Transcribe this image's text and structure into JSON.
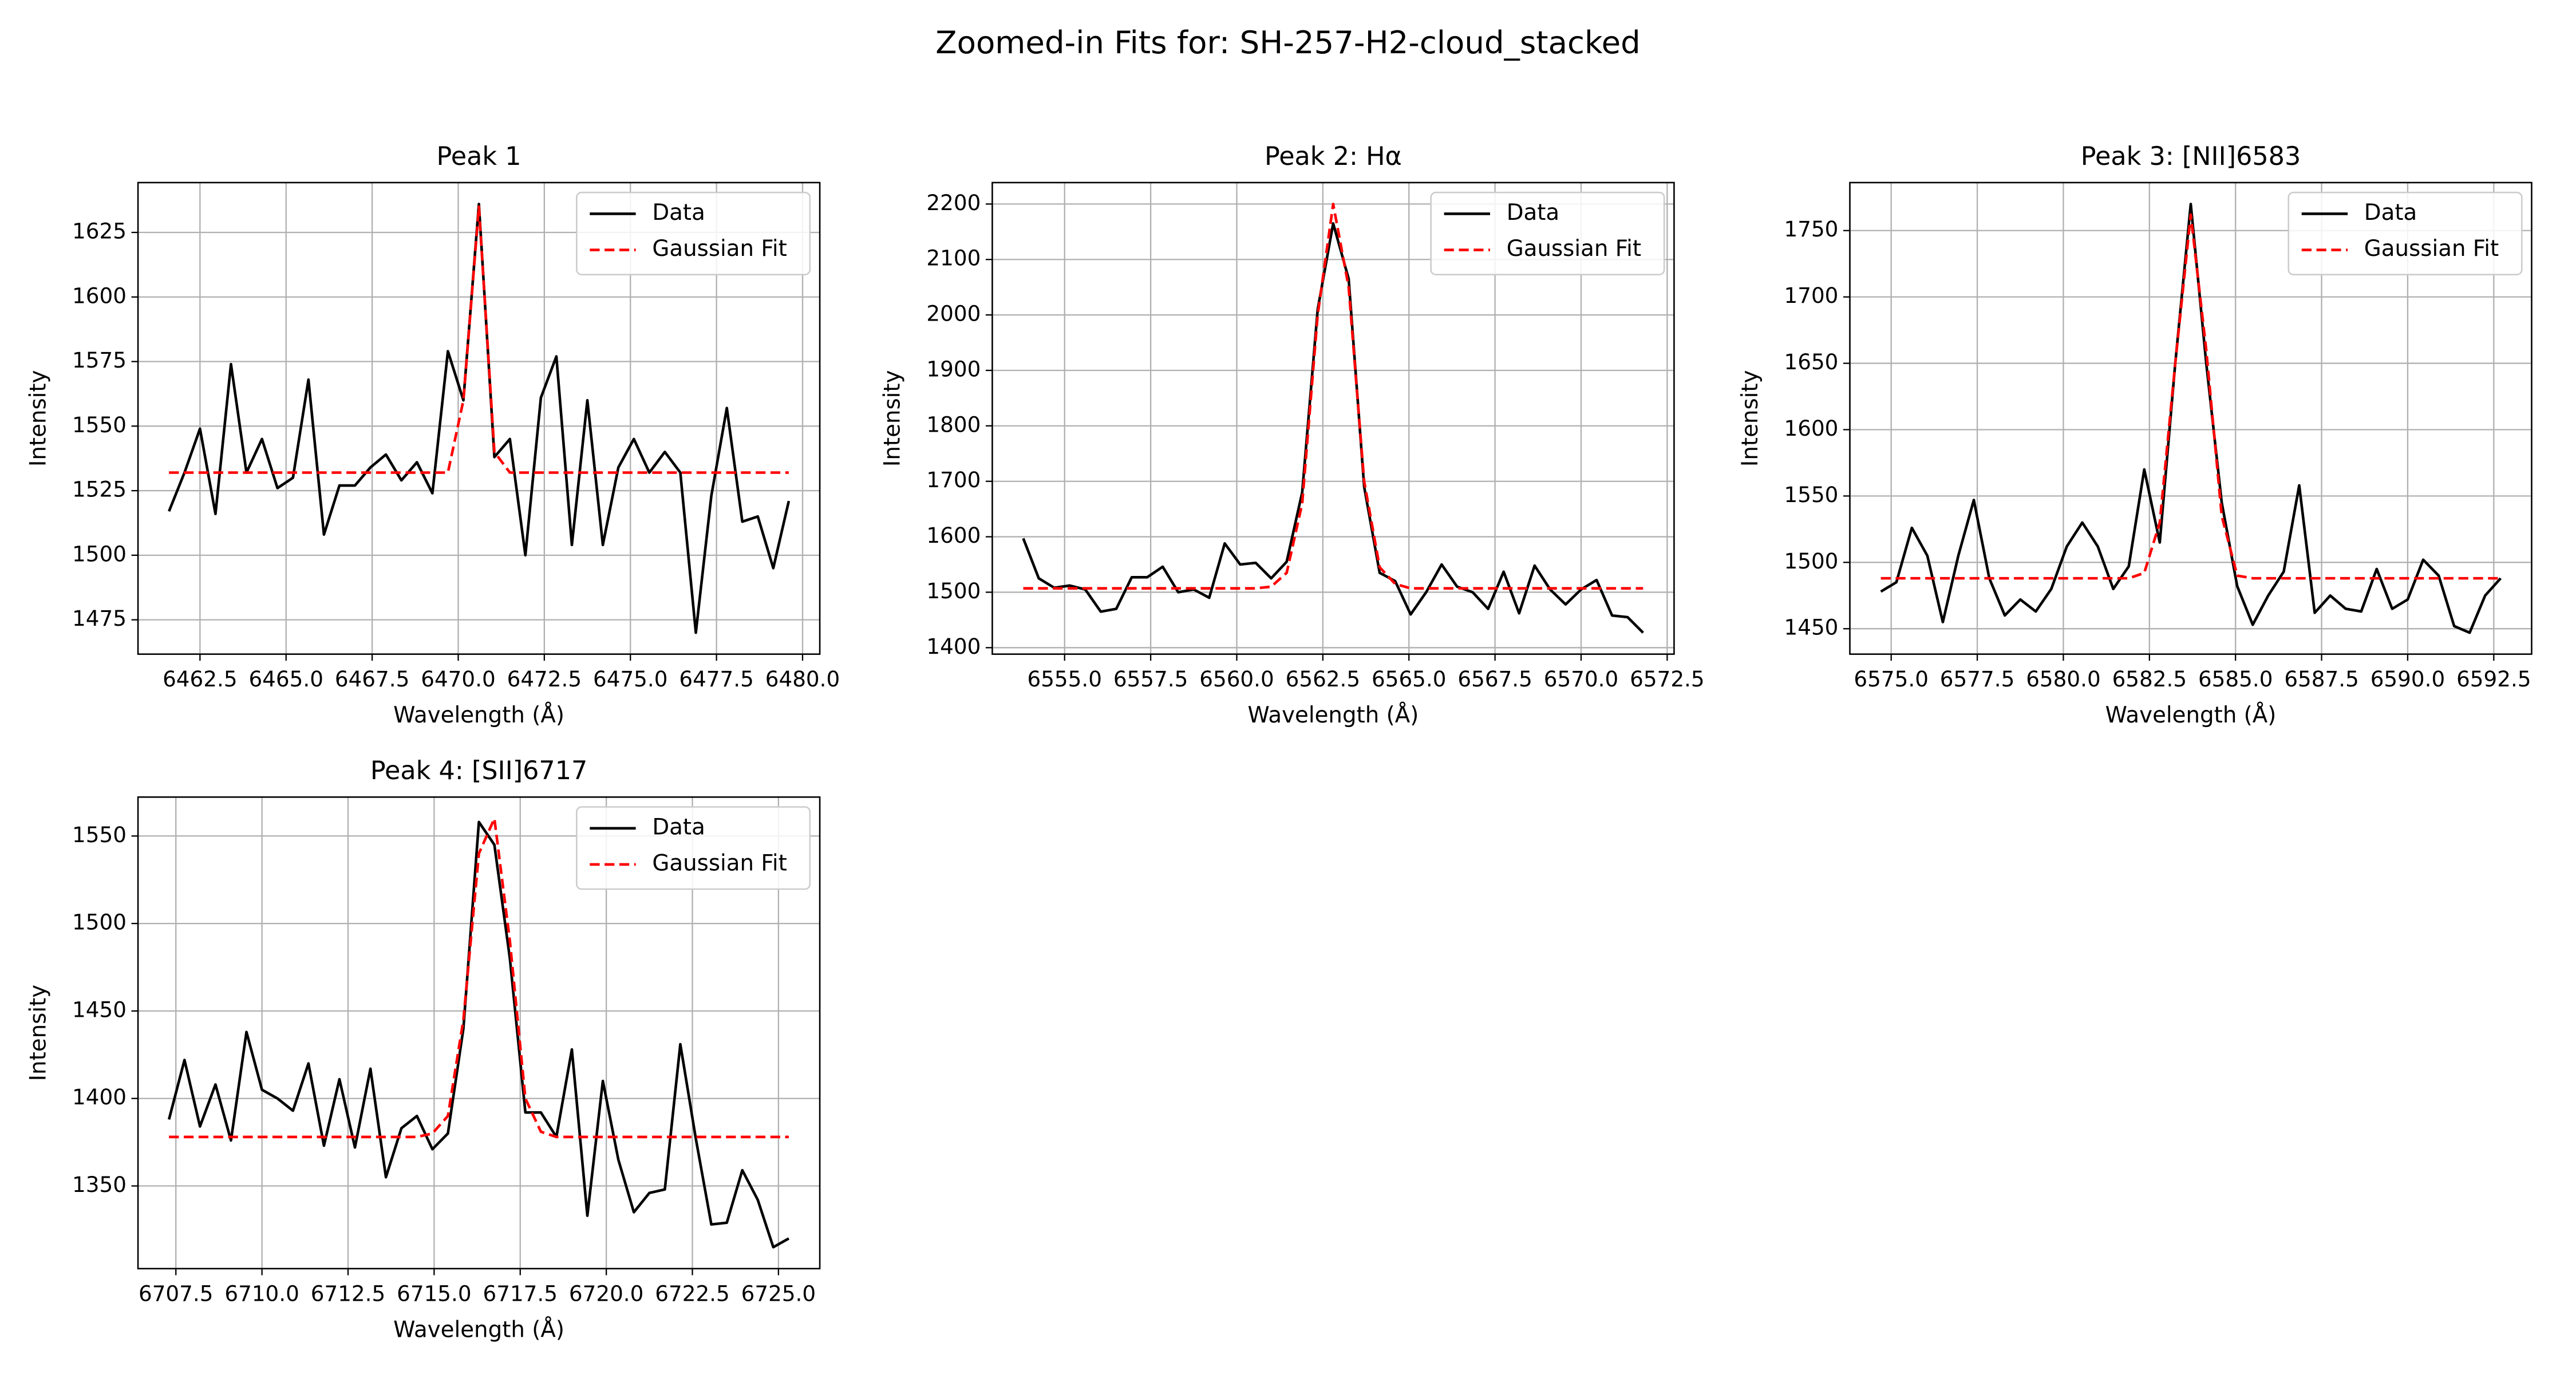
{
  "title": "Zoomed-in Fits for: SH-257-H2-cloud_stacked",
  "chart_data": [
    {
      "type": "line",
      "title": "Peak 1",
      "xlabel": "Wavelength (Å)",
      "ylabel": "Intensity",
      "grid": true,
      "legend": "upper right",
      "x": [
        6461.6,
        6462.05,
        6462.5,
        6462.95,
        6463.4,
        6463.85,
        6464.3,
        6464.75,
        6465.2,
        6465.65,
        6466.1,
        6466.55,
        6467.0,
        6467.45,
        6467.9,
        6468.35,
        6468.8,
        6469.25,
        6469.7,
        6470.15,
        6470.6,
        6471.05,
        6471.5,
        6471.95,
        6472.4,
        6472.85,
        6473.3,
        6473.75,
        6474.2,
        6474.65,
        6475.1,
        6475.55,
        6476.0,
        6476.45,
        6476.9,
        6477.35,
        6477.8,
        6478.25,
        6478.7,
        6479.15,
        6479.6
      ],
      "series": [
        {
          "name": "Data",
          "color": "#000000",
          "linestyle": "solid",
          "values": [
            1517,
            1532,
            1549,
            1516,
            1574,
            1532,
            1545,
            1526,
            1530,
            1568,
            1508,
            1527,
            1527,
            1534,
            1539,
            1529,
            1536,
            1524,
            1579,
            1560,
            1636,
            1538,
            1545,
            1500,
            1561,
            1577,
            1504,
            1560,
            1504,
            1534,
            1545,
            1532,
            1540,
            1532,
            1470,
            1523,
            1557,
            1513,
            1515,
            1495,
            1521
          ]
        },
        {
          "name": "Gaussian Fit",
          "color": "#ff0000",
          "linestyle": "dashed",
          "values": [
            1532,
            1532,
            1532,
            1532,
            1532,
            1532,
            1532,
            1532,
            1532,
            1532,
            1532,
            1532,
            1532,
            1532,
            1532,
            1532,
            1532,
            1532,
            1532,
            1560,
            1635,
            1540,
            1532,
            1532,
            1532,
            1532,
            1532,
            1532,
            1532,
            1532,
            1532,
            1532,
            1532,
            1532,
            1532,
            1532,
            1532,
            1532,
            1532,
            1532,
            1532
          ]
        }
      ],
      "xlim": [
        6460.7,
        6480.5
      ],
      "ylim": [
        1461.7,
        1644.3
      ],
      "xticks": [
        6462.5,
        {
          "value": 6465,
          "label": "6465.0"
        },
        6467.5,
        {
          "value": 6470,
          "label": "6470.0"
        },
        6472.5,
        {
          "value": 6475,
          "label": "6475.0"
        },
        6477.5,
        {
          "value": 6480,
          "label": "6480.0"
        }
      ],
      "yticks": [
        1475,
        1500,
        1525,
        1550,
        1575,
        1600,
        1625
      ]
    },
    {
      "type": "line",
      "title": "Peak 2: Hα",
      "xlabel": "Wavelength (Å)",
      "ylabel": "Intensity",
      "grid": true,
      "legend": "upper right",
      "x": [
        6553.8,
        6554.25,
        6554.7,
        6555.15,
        6555.6,
        6556.05,
        6556.5,
        6556.95,
        6557.4,
        6557.85,
        6558.3,
        6558.75,
        6559.2,
        6559.65,
        6560.1,
        6560.55,
        6561.0,
        6561.45,
        6561.9,
        6562.35,
        6562.8,
        6563.25,
        6563.7,
        6564.15,
        6564.6,
        6565.05,
        6565.5,
        6565.95,
        6566.4,
        6566.85,
        6567.3,
        6567.75,
        6568.2,
        6568.65,
        6569.1,
        6569.55,
        6570.0,
        6570.45,
        6570.9,
        6571.35,
        6571.8
      ],
      "series": [
        {
          "name": "Data",
          "color": "#000000",
          "linestyle": "solid",
          "values": [
            1597,
            1525,
            1508,
            1512,
            1505,
            1465,
            1470,
            1527,
            1527,
            1546,
            1500,
            1505,
            1490,
            1588,
            1550,
            1553,
            1525,
            1555,
            1680,
            2010,
            2165,
            2065,
            1690,
            1535,
            1520,
            1460,
            1500,
            1550,
            1510,
            1500,
            1470,
            1537,
            1462,
            1548,
            1505,
            1478,
            1505,
            1522,
            1458,
            1455,
            1427
          ]
        },
        {
          "name": "Gaussian Fit",
          "color": "#ff0000",
          "linestyle": "dashed",
          "values": [
            1507,
            1507,
            1507,
            1507,
            1507,
            1507,
            1507,
            1507,
            1507,
            1507,
            1507,
            1507,
            1507,
            1507,
            1507,
            1507,
            1510,
            1535,
            1660,
            2000,
            2200,
            2050,
            1700,
            1545,
            1515,
            1507,
            1507,
            1507,
            1507,
            1507,
            1507,
            1507,
            1507,
            1507,
            1507,
            1507,
            1507,
            1507,
            1507,
            1507,
            1507
          ]
        }
      ],
      "xlim": [
        6552.9,
        6572.7
      ],
      "ylim": [
        1388.35,
        2238.65
      ],
      "xticks": [
        {
          "value": 6555,
          "label": "6555.0"
        },
        6557.5,
        {
          "value": 6560,
          "label": "6560.0"
        },
        6562.5,
        {
          "value": 6565,
          "label": "6565.0"
        },
        6567.5,
        {
          "value": 6570,
          "label": "6570.0"
        },
        6572.5
      ],
      "yticks": [
        1400,
        1500,
        1600,
        1700,
        1800,
        1900,
        2000,
        2100,
        2200
      ]
    },
    {
      "type": "line",
      "title": "Peak 3: [NII]6583",
      "xlabel": "Wavelength (Å)",
      "ylabel": "Intensity",
      "grid": true,
      "legend": "upper right",
      "x": [
        6574.7,
        6575.15,
        6575.6,
        6576.05,
        6576.5,
        6576.95,
        6577.4,
        6577.85,
        6578.3,
        6578.75,
        6579.2,
        6579.65,
        6580.1,
        6580.55,
        6581.0,
        6581.45,
        6581.9,
        6582.35,
        6582.8,
        6583.25,
        6583.7,
        6584.15,
        6584.6,
        6585.05,
        6585.5,
        6585.95,
        6586.4,
        6586.85,
        6587.3,
        6587.75,
        6588.2,
        6588.65,
        6589.1,
        6589.55,
        6590.0,
        6590.45,
        6590.9,
        6591.35,
        6591.8,
        6592.25,
        6592.7
      ],
      "series": [
        {
          "name": "Data",
          "color": "#000000",
          "linestyle": "solid",
          "values": [
            1478,
            1485,
            1526,
            1505,
            1455,
            1505,
            1547,
            1488,
            1460,
            1472,
            1463,
            1480,
            1512,
            1530,
            1512,
            1480,
            1497,
            1570,
            1515,
            1650,
            1770,
            1650,
            1545,
            1482,
            1453,
            1475,
            1493,
            1558,
            1462,
            1475,
            1465,
            1463,
            1495,
            1465,
            1472,
            1502,
            1490,
            1452,
            1447,
            1475,
            1488
          ]
        },
        {
          "name": "Gaussian Fit",
          "color": "#ff0000",
          "linestyle": "dashed",
          "values": [
            1488,
            1488,
            1488,
            1488,
            1488,
            1488,
            1488,
            1488,
            1488,
            1488,
            1488,
            1488,
            1488,
            1488,
            1488,
            1488,
            1488,
            1492,
            1530,
            1650,
            1762,
            1660,
            1535,
            1490,
            1488,
            1488,
            1488,
            1488,
            1488,
            1488,
            1488,
            1488,
            1488,
            1488,
            1488,
            1488,
            1488,
            1488,
            1488,
            1488,
            1488
          ]
        }
      ],
      "xlim": [
        6573.8,
        6593.6
      ],
      "ylim": [
        1430.85,
        1786.15
      ],
      "xticks": [
        {
          "value": 6575,
          "label": "6575.0"
        },
        6577.5,
        {
          "value": 6580,
          "label": "6580.0"
        },
        6582.5,
        {
          "value": 6585,
          "label": "6585.0"
        },
        6587.5,
        {
          "value": 6590,
          "label": "6590.0"
        },
        6592.5
      ],
      "yticks": [
        1450,
        1500,
        1550,
        1600,
        1650,
        1700,
        1750
      ]
    },
    {
      "type": "line",
      "title": "Peak 4: [SII]6717",
      "xlabel": "Wavelength (Å)",
      "ylabel": "Intensity",
      "grid": true,
      "legend": "upper right",
      "x": [
        6707.3,
        6707.75,
        6708.2,
        6708.65,
        6709.1,
        6709.55,
        6710.0,
        6710.45,
        6710.9,
        6711.35,
        6711.8,
        6712.25,
        6712.7,
        6713.15,
        6713.6,
        6714.05,
        6714.5,
        6714.95,
        6715.4,
        6715.85,
        6716.3,
        6716.75,
        6717.2,
        6717.65,
        6718.1,
        6718.55,
        6719.0,
        6719.45,
        6719.9,
        6720.35,
        6720.8,
        6721.25,
        6721.7,
        6722.15,
        6722.6,
        6723.05,
        6723.5,
        6723.95,
        6724.4,
        6724.85,
        6725.3
      ],
      "series": [
        {
          "name": "Data",
          "color": "#000000",
          "linestyle": "solid",
          "values": [
            1388,
            1422,
            1384,
            1408,
            1376,
            1438,
            1405,
            1400,
            1393,
            1420,
            1373,
            1411,
            1372,
            1417,
            1355,
            1383,
            1390,
            1371,
            1380,
            1440,
            1558,
            1545,
            1480,
            1392,
            1392,
            1378,
            1428,
            1333,
            1410,
            1365,
            1335,
            1346,
            1348,
            1431,
            1377,
            1328,
            1329,
            1359,
            1342,
            1315,
            1320
          ]
        },
        {
          "name": "Gaussian Fit",
          "color": "#ff0000",
          "linestyle": "dashed",
          "values": [
            1378,
            1378,
            1378,
            1378,
            1378,
            1378,
            1378,
            1378,
            1378,
            1378,
            1378,
            1378,
            1378,
            1378,
            1378,
            1378,
            1378,
            1380,
            1390,
            1445,
            1540,
            1560,
            1490,
            1400,
            1381,
            1378,
            1378,
            1378,
            1378,
            1378,
            1378,
            1378,
            1378,
            1378,
            1378,
            1378,
            1378,
            1378,
            1378,
            1378,
            1378
          ]
        }
      ],
      "xlim": [
        6706.4,
        6726.2
      ],
      "ylim": [
        1302.75,
        1572.25
      ],
      "xticks": [
        6707.5,
        {
          "value": 6710,
          "label": "6710.0"
        },
        6712.5,
        {
          "value": 6715,
          "label": "6715.0"
        },
        6717.5,
        {
          "value": 6720,
          "label": "6720.0"
        },
        6722.5,
        {
          "value": 6725,
          "label": "6725.0"
        }
      ],
      "yticks": [
        1350,
        1400,
        1450,
        1500,
        1550
      ]
    }
  ]
}
